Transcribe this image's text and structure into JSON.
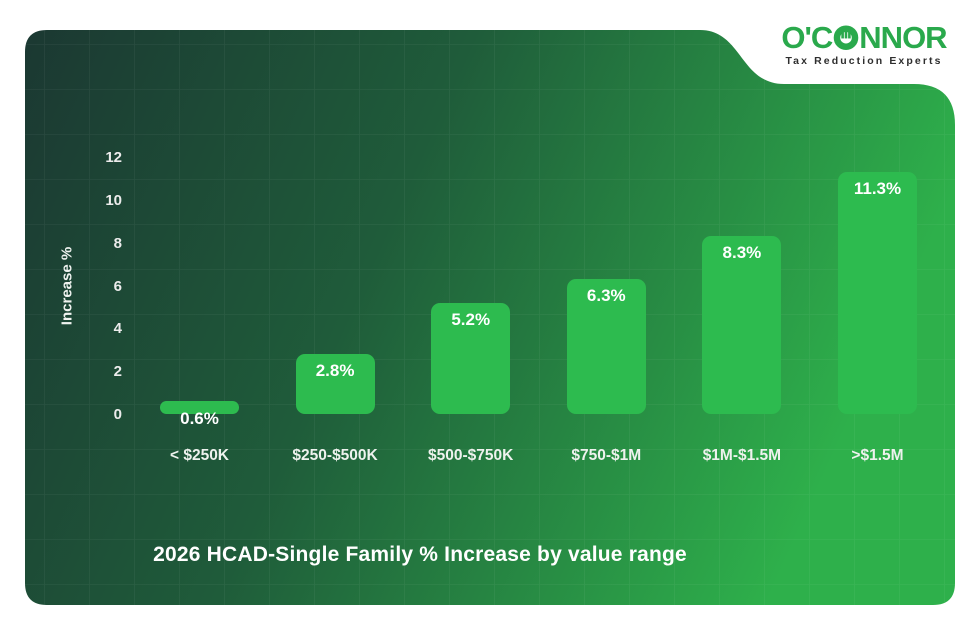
{
  "logo": {
    "brand_prefix": "O'C",
    "brand_suffix": "NNOR",
    "tagline": "Tax Reduction Experts",
    "brand_color": "#2aa94c",
    "tagline_color": "#2e2e2e"
  },
  "card": {
    "gradient": [
      "#1b3832",
      "#1f5c3a",
      "#2eb04b"
    ],
    "grid_color": "rgba(255,255,255,0.055)",
    "page_color": "#ffffff"
  },
  "chart_data": {
    "type": "bar",
    "title": "2026 HCAD-Single Family % Increase by value range",
    "ylabel": "Increase %",
    "categories": [
      "< $250K",
      "$250-$500K",
      "$500-$750K",
      "$750-$1M",
      "$1M-$1.5M",
      ">$1.5M"
    ],
    "values": [
      0.6,
      2.8,
      5.2,
      6.3,
      8.3,
      11.3
    ],
    "value_labels": [
      "0.6%",
      "2.8%",
      "5.2%",
      "6.3%",
      "8.3%",
      "11.3%"
    ],
    "yticks": [
      0,
      2,
      4,
      6,
      8,
      10,
      12
    ],
    "ylim": [
      0,
      12
    ],
    "grid": true,
    "legend": "none",
    "bar_color": "#2dbb4f",
    "label_color": "#ffffff"
  }
}
